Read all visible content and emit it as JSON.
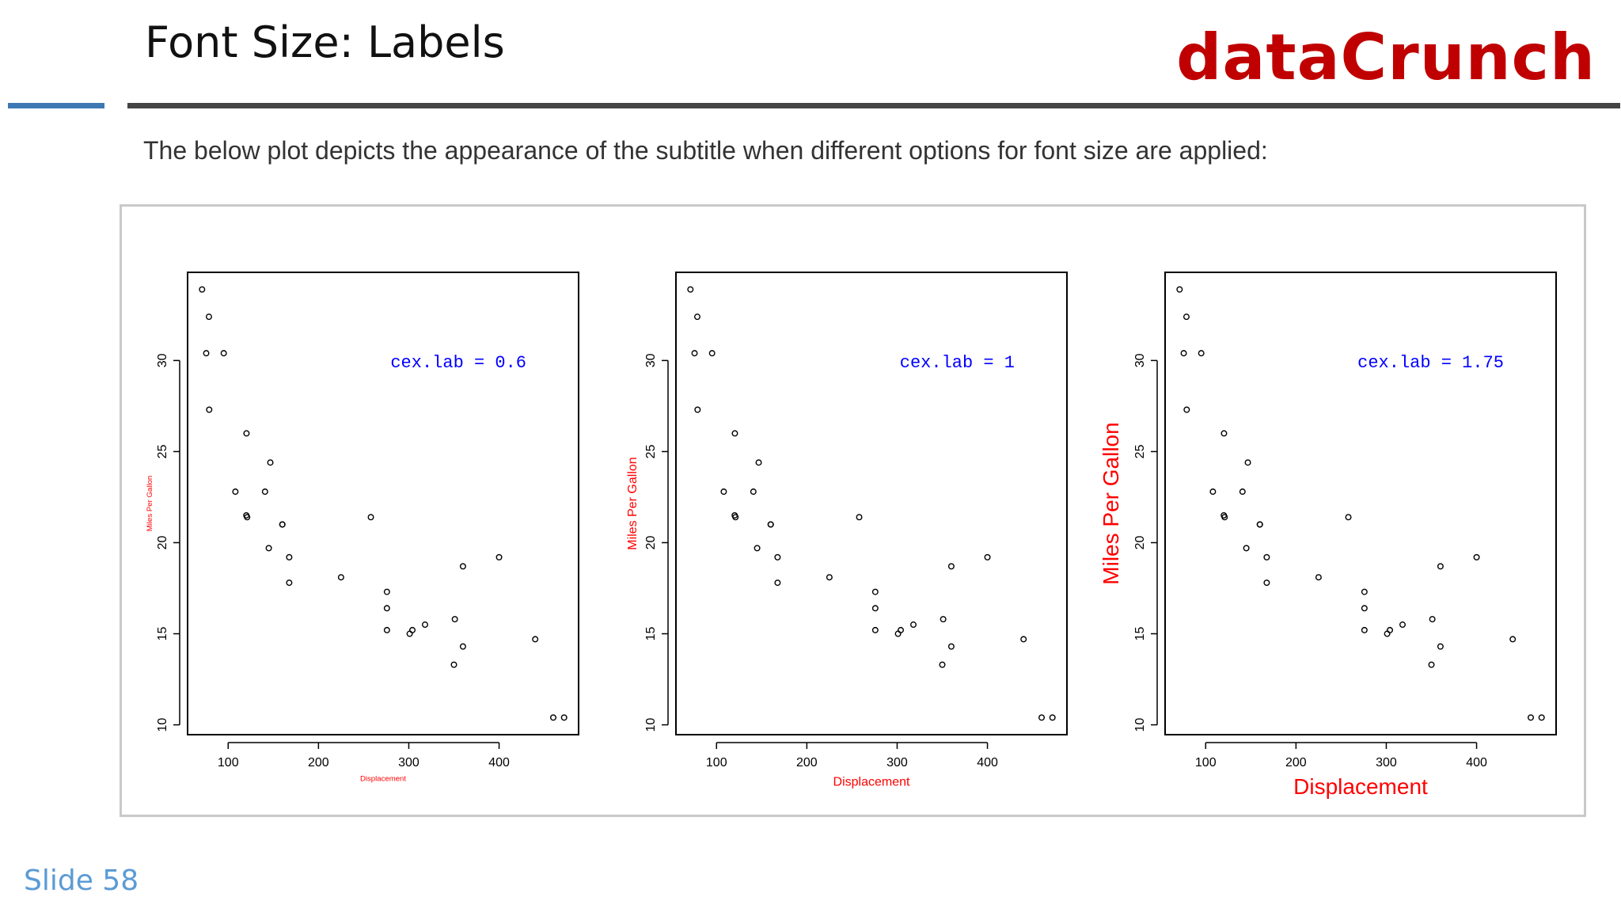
{
  "slide": {
    "title": "Font Size: Labels",
    "brand": "dataCrunch",
    "intro": "The below plot depicts the appearance of the subtitle when different options for font size are applied:",
    "number": "Slide 58"
  },
  "colors": {
    "brand": "#c00000",
    "axis_label": "#ff0000",
    "annotation": "#0000ff",
    "accent_blue": "#3d78b4",
    "rule_dark": "#444444"
  },
  "chart_data": [
    {
      "type": "scatter",
      "title": "",
      "xlabel": "Displacement",
      "ylabel": "Miles Per Gallon",
      "annotation": "cex.lab =  0.6",
      "label_scale": 0.6,
      "x_ticks": [
        "100",
        "200",
        "300",
        "400"
      ],
      "y_ticks": [
        "10",
        "15",
        "20",
        "25",
        "30"
      ],
      "xlim": [
        71.1,
        472
      ],
      "ylim": [
        10.4,
        33.9
      ],
      "grid": false,
      "points": [
        [
          160,
          21.0
        ],
        [
          160,
          21.0
        ],
        [
          108,
          22.8
        ],
        [
          258,
          21.4
        ],
        [
          360,
          18.7
        ],
        [
          225,
          18.1
        ],
        [
          360,
          14.3
        ],
        [
          146.7,
          24.4
        ],
        [
          140.8,
          22.8
        ],
        [
          167.6,
          19.2
        ],
        [
          167.6,
          17.8
        ],
        [
          275.8,
          16.4
        ],
        [
          275.8,
          17.3
        ],
        [
          275.8,
          15.2
        ],
        [
          472,
          10.4
        ],
        [
          460,
          10.4
        ],
        [
          440,
          14.7
        ],
        [
          78.7,
          32.4
        ],
        [
          75.7,
          30.4
        ],
        [
          71.1,
          33.9
        ],
        [
          120.1,
          21.5
        ],
        [
          318,
          15.5
        ],
        [
          304,
          15.2
        ],
        [
          350,
          13.3
        ],
        [
          400,
          19.2
        ],
        [
          79,
          27.3
        ],
        [
          120.3,
          26.0
        ],
        [
          95.1,
          30.4
        ],
        [
          351,
          15.8
        ],
        [
          145,
          19.7
        ],
        [
          301,
          15.0
        ],
        [
          121,
          21.4
        ]
      ]
    },
    {
      "type": "scatter",
      "title": "",
      "xlabel": "Displacement",
      "ylabel": "Miles Per Gallon",
      "annotation": "cex.lab =  1",
      "label_scale": 1,
      "x_ticks": [
        "100",
        "200",
        "300",
        "400"
      ],
      "y_ticks": [
        "10",
        "15",
        "20",
        "25",
        "30"
      ],
      "xlim": [
        71.1,
        472
      ],
      "ylim": [
        10.4,
        33.9
      ],
      "grid": false,
      "points": [
        [
          160,
          21.0
        ],
        [
          160,
          21.0
        ],
        [
          108,
          22.8
        ],
        [
          258,
          21.4
        ],
        [
          360,
          18.7
        ],
        [
          225,
          18.1
        ],
        [
          360,
          14.3
        ],
        [
          146.7,
          24.4
        ],
        [
          140.8,
          22.8
        ],
        [
          167.6,
          19.2
        ],
        [
          167.6,
          17.8
        ],
        [
          275.8,
          16.4
        ],
        [
          275.8,
          17.3
        ],
        [
          275.8,
          15.2
        ],
        [
          472,
          10.4
        ],
        [
          460,
          10.4
        ],
        [
          440,
          14.7
        ],
        [
          78.7,
          32.4
        ],
        [
          75.7,
          30.4
        ],
        [
          71.1,
          33.9
        ],
        [
          120.1,
          21.5
        ],
        [
          318,
          15.5
        ],
        [
          304,
          15.2
        ],
        [
          350,
          13.3
        ],
        [
          400,
          19.2
        ],
        [
          79,
          27.3
        ],
        [
          120.3,
          26.0
        ],
        [
          95.1,
          30.4
        ],
        [
          351,
          15.8
        ],
        [
          145,
          19.7
        ],
        [
          301,
          15.0
        ],
        [
          121,
          21.4
        ]
      ]
    },
    {
      "type": "scatter",
      "title": "",
      "xlabel": "Displacement",
      "ylabel": "Miles Per Gallon",
      "annotation": "cex.lab =  1.75",
      "label_scale": 1.75,
      "x_ticks": [
        "100",
        "200",
        "300",
        "400"
      ],
      "y_ticks": [
        "10",
        "15",
        "20",
        "25",
        "30"
      ],
      "xlim": [
        71.1,
        472
      ],
      "ylim": [
        10.4,
        33.9
      ],
      "grid": false,
      "points": [
        [
          160,
          21.0
        ],
        [
          160,
          21.0
        ],
        [
          108,
          22.8
        ],
        [
          258,
          21.4
        ],
        [
          360,
          18.7
        ],
        [
          225,
          18.1
        ],
        [
          360,
          14.3
        ],
        [
          146.7,
          24.4
        ],
        [
          140.8,
          22.8
        ],
        [
          167.6,
          19.2
        ],
        [
          167.6,
          17.8
        ],
        [
          275.8,
          16.4
        ],
        [
          275.8,
          17.3
        ],
        [
          275.8,
          15.2
        ],
        [
          472,
          10.4
        ],
        [
          460,
          10.4
        ],
        [
          440,
          14.7
        ],
        [
          78.7,
          32.4
        ],
        [
          75.7,
          30.4
        ],
        [
          71.1,
          33.9
        ],
        [
          120.1,
          21.5
        ],
        [
          318,
          15.5
        ],
        [
          304,
          15.2
        ],
        [
          350,
          13.3
        ],
        [
          400,
          19.2
        ],
        [
          79,
          27.3
        ],
        [
          120.3,
          26.0
        ],
        [
          95.1,
          30.4
        ],
        [
          351,
          15.8
        ],
        [
          145,
          19.7
        ],
        [
          301,
          15.0
        ],
        [
          121,
          21.4
        ]
      ]
    }
  ]
}
